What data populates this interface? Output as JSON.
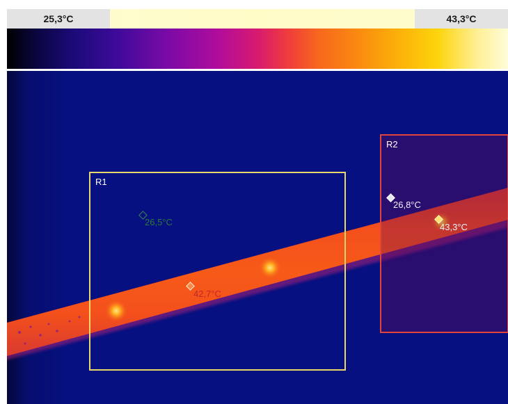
{
  "legend": {
    "min_label": "25,3°C",
    "max_label": "43,3°C",
    "palette": "iron"
  },
  "regions": [
    {
      "id": "r1",
      "label": "R1",
      "color": "#e8d86a"
    },
    {
      "id": "r2",
      "label": "R2",
      "color": "#e0443c"
    }
  ],
  "spots": [
    {
      "id": "r1-min",
      "value": "26,5°C",
      "marker_color": "#2a6a3a",
      "text_color": "#2f7a3a"
    },
    {
      "id": "r1-max",
      "value": "42,7°C",
      "marker_color": "#f2e0b0",
      "text_color": "#c0282a"
    },
    {
      "id": "r2-min",
      "value": "26,8°C",
      "marker_color": "#e6e6f2",
      "text_color": "#f0f0f8"
    },
    {
      "id": "r2-max",
      "value": "43,3°C",
      "marker_color": "#ffe070",
      "text_color": "#f0f0f8"
    }
  ]
}
